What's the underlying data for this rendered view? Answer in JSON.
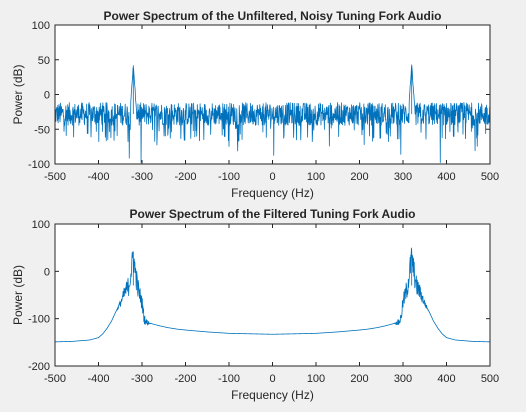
{
  "figure": {
    "background": "#f0f0f0",
    "axes_background": "#ffffff",
    "line_color": "#0072bd",
    "axis_color": "#262626"
  },
  "chart_data": [
    {
      "type": "line",
      "title": "Power Spectrum of the Unfiltered, Noisy Tuning Fork Audio",
      "xlabel": "Frequency (Hz)",
      "ylabel": "Power (dB)",
      "xlim": [
        -500,
        500
      ],
      "ylim": [
        -100,
        100
      ],
      "xticks": [
        -500,
        -400,
        -300,
        -200,
        -100,
        0,
        100,
        200,
        300,
        400,
        500
      ],
      "yticks": [
        -100,
        -50,
        0,
        50,
        100
      ],
      "grid": false,
      "series": [
        {
          "noise_floor_db": -28,
          "noise_band_db": [
            -48,
            -15
          ],
          "dropouts_db_min": -100,
          "peaks": [
            {
              "x": -320,
              "y": 42
            },
            {
              "x": 320,
              "y": 42
            }
          ]
        }
      ]
    },
    {
      "type": "line",
      "title": "Power Spectrum of the Filtered Tuning Fork Audio",
      "xlabel": "Frequency (Hz)",
      "ylabel": "Power (dB)",
      "xlim": [
        -500,
        500
      ],
      "ylim": [
        -200,
        100
      ],
      "xticks": [
        -500,
        -400,
        -300,
        -200,
        -100,
        0,
        100,
        200,
        300,
        400,
        500
      ],
      "yticks": [
        -200,
        -100,
        0,
        100
      ],
      "grid": false,
      "series": [
        {
          "points": [
            [
              -500,
              -149
            ],
            [
              -460,
              -148
            ],
            [
              -420,
              -145
            ],
            [
              -400,
              -140
            ],
            [
              -390,
              -132
            ],
            [
              -380,
              -120
            ],
            [
              -370,
              -105
            ],
            [
              -360,
              -85
            ],
            [
              -350,
              -65
            ],
            [
              -340,
              -40
            ],
            [
              -330,
              -20
            ],
            [
              -320,
              42
            ],
            [
              -310,
              -25
            ],
            [
              -300,
              -60
            ],
            [
              -295,
              -95
            ],
            [
              -290,
              -105
            ],
            [
              -280,
              -110
            ],
            [
              -260,
              -115
            ],
            [
              -240,
              -119
            ],
            [
              -220,
              -122
            ],
            [
              -200,
              -124
            ],
            [
              -150,
              -128
            ],
            [
              -100,
              -131
            ],
            [
              -50,
              -132
            ],
            [
              0,
              -133
            ],
            [
              50,
              -132
            ],
            [
              100,
              -131
            ],
            [
              150,
              -128
            ],
            [
              200,
              -124
            ],
            [
              220,
              -122
            ],
            [
              240,
              -119
            ],
            [
              260,
              -115
            ],
            [
              280,
              -110
            ],
            [
              290,
              -105
            ],
            [
              295,
              -95
            ],
            [
              300,
              -60
            ],
            [
              310,
              -25
            ],
            [
              320,
              42
            ],
            [
              330,
              -20
            ],
            [
              340,
              -40
            ],
            [
              350,
              -65
            ],
            [
              360,
              -85
            ],
            [
              370,
              -105
            ],
            [
              380,
              -120
            ],
            [
              390,
              -132
            ],
            [
              400,
              -140
            ],
            [
              420,
              -145
            ],
            [
              460,
              -148
            ],
            [
              500,
              -149
            ]
          ]
        }
      ]
    }
  ]
}
